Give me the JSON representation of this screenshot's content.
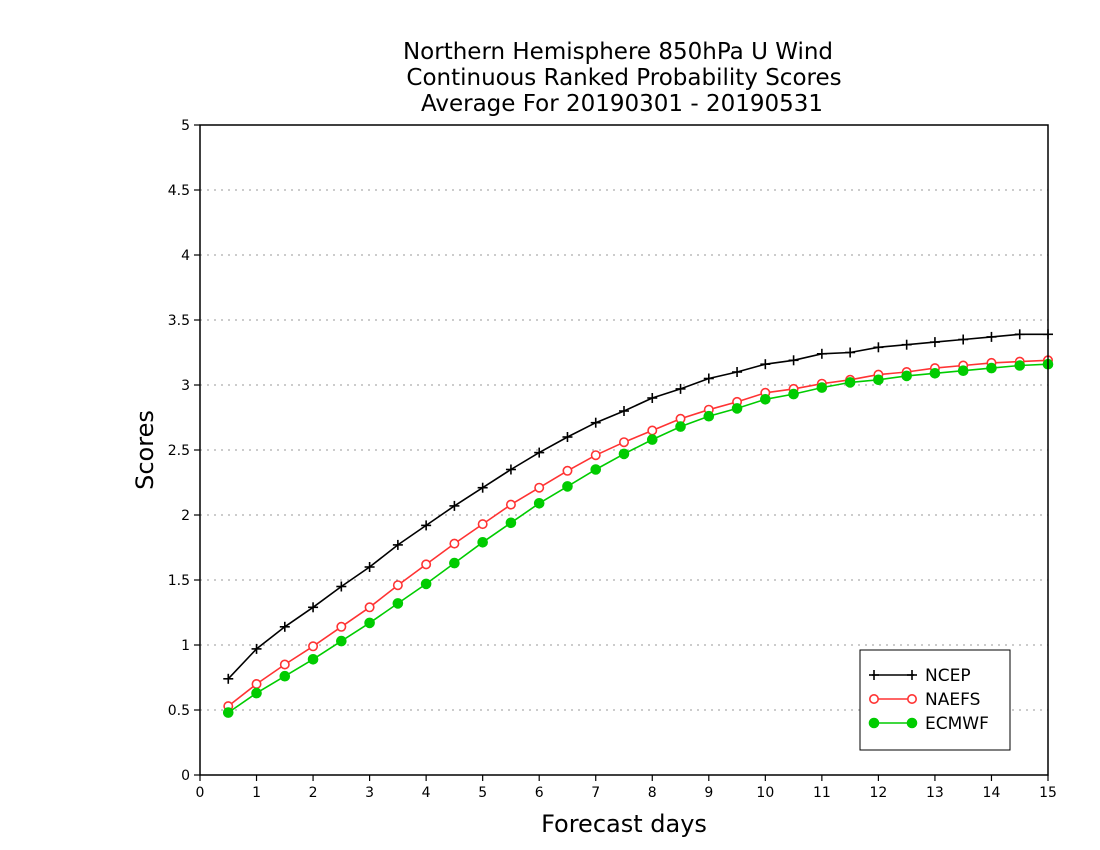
{
  "chart_data": {
    "type": "line",
    "title_lines": [
      "Northern Hemisphere 850hPa U Wind",
      "Continuous Ranked Probability Scores",
      "Average For 20190301 - 20190531"
    ],
    "xlabel": "Forecast days",
    "ylabel": "Scores",
    "xlim": [
      0,
      15
    ],
    "ylim": [
      0,
      5
    ],
    "x_ticks": [
      "0",
      "1",
      "2",
      "3",
      "4",
      "5",
      "6",
      "7",
      "8",
      "9",
      "10",
      "11",
      "12",
      "13",
      "14",
      "15"
    ],
    "y_ticks": [
      "0",
      "0.5",
      "1",
      "1.5",
      "2",
      "2.5",
      "3",
      "3.5",
      "4",
      "4.5",
      "5"
    ],
    "grid": "horizontal dotted",
    "legend_position": "bottom-right",
    "x": [
      0.5,
      1,
      1.5,
      2,
      2.5,
      3,
      3.5,
      4,
      4.5,
      5,
      5.5,
      6,
      6.5,
      7,
      7.5,
      8,
      8.5,
      9,
      9.5,
      10,
      10.5,
      11,
      11.5,
      12,
      12.5,
      13,
      13.5,
      14,
      14.5,
      15
    ],
    "series": [
      {
        "name": "NCEP",
        "color": "#000000",
        "marker": "plus",
        "values": [
          0.74,
          0.97,
          1.14,
          1.29,
          1.45,
          1.6,
          1.77,
          1.92,
          2.07,
          2.21,
          2.35,
          2.48,
          2.6,
          2.71,
          2.8,
          2.9,
          2.97,
          3.05,
          3.1,
          3.16,
          3.19,
          3.24,
          3.25,
          3.29,
          3.31,
          3.33,
          3.35,
          3.37,
          3.39,
          3.39
        ]
      },
      {
        "name": "NAEFS",
        "color": "#ff3333",
        "marker": "open-circle",
        "values": [
          0.53,
          0.7,
          0.85,
          0.99,
          1.14,
          1.29,
          1.46,
          1.62,
          1.78,
          1.93,
          2.08,
          2.21,
          2.34,
          2.46,
          2.56,
          2.65,
          2.74,
          2.81,
          2.87,
          2.94,
          2.97,
          3.01,
          3.04,
          3.08,
          3.1,
          3.13,
          3.15,
          3.17,
          3.18,
          3.19
        ]
      },
      {
        "name": "ECMWF",
        "color": "#00cc00",
        "marker": "filled-circle",
        "values": [
          0.48,
          0.63,
          0.76,
          0.89,
          1.03,
          1.17,
          1.32,
          1.47,
          1.63,
          1.79,
          1.94,
          2.09,
          2.22,
          2.35,
          2.47,
          2.58,
          2.68,
          2.76,
          2.82,
          2.89,
          2.93,
          2.98,
          3.02,
          3.04,
          3.07,
          3.09,
          3.11,
          3.13,
          3.15,
          3.16
        ]
      }
    ]
  }
}
